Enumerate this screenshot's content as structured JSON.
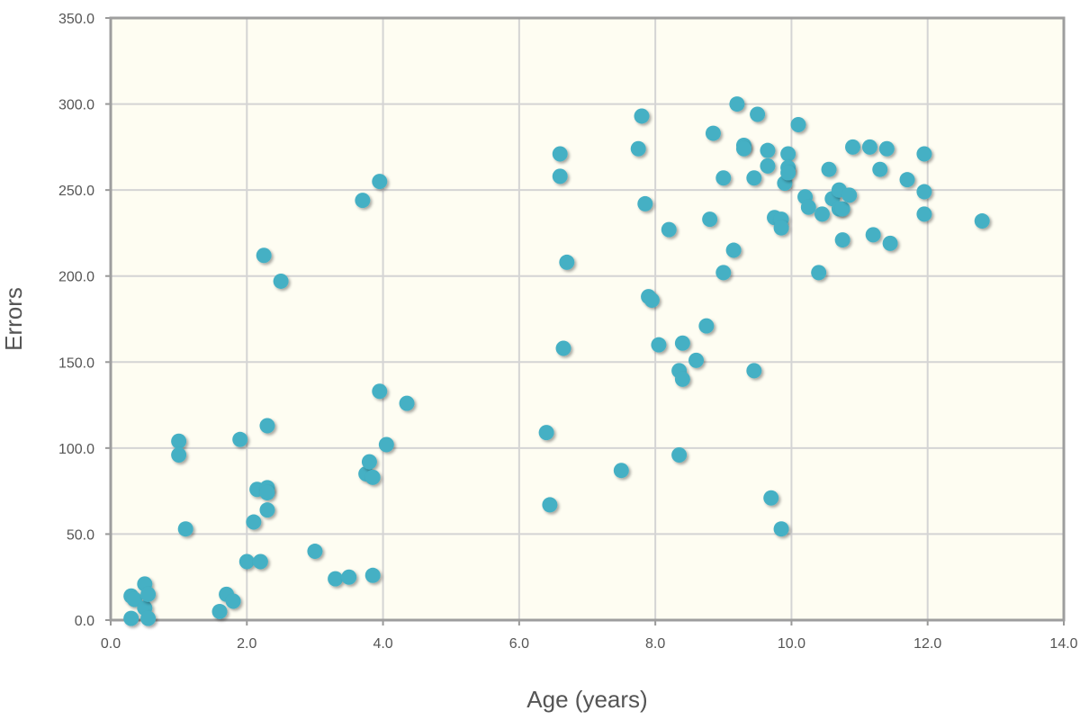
{
  "chart_data": {
    "type": "scatter",
    "title": "",
    "xlabel": "Age (years)",
    "ylabel": "Errors",
    "xlim": [
      0,
      14
    ],
    "ylim": [
      0,
      350
    ],
    "grid": true,
    "x_ticks": [
      "0.0",
      "2.0",
      "4.0",
      "6.0",
      "8.0",
      "10.0",
      "12.0",
      "14.0"
    ],
    "y_ticks": [
      "0.0",
      "50.0",
      "100.0",
      "150.0",
      "200.0",
      "250.0",
      "300.0",
      "350.0"
    ],
    "plot_background": "#fefdf2",
    "marker_color": "#45b0c4",
    "points": [
      {
        "x": 0.3,
        "y": 14
      },
      {
        "x": 0.35,
        "y": 12
      },
      {
        "x": 0.3,
        "y": 1
      },
      {
        "x": 0.5,
        "y": 21
      },
      {
        "x": 0.5,
        "y": 7
      },
      {
        "x": 0.55,
        "y": 15
      },
      {
        "x": 0.55,
        "y": 1
      },
      {
        "x": 1.0,
        "y": 104
      },
      {
        "x": 1.0,
        "y": 96
      },
      {
        "x": 1.1,
        "y": 53
      },
      {
        "x": 1.6,
        "y": 5
      },
      {
        "x": 1.7,
        "y": 15
      },
      {
        "x": 1.8,
        "y": 11
      },
      {
        "x": 1.9,
        "y": 105
      },
      {
        "x": 2.0,
        "y": 34
      },
      {
        "x": 2.1,
        "y": 57
      },
      {
        "x": 2.15,
        "y": 76
      },
      {
        "x": 2.2,
        "y": 34
      },
      {
        "x": 2.25,
        "y": 212
      },
      {
        "x": 2.3,
        "y": 113
      },
      {
        "x": 2.3,
        "y": 77
      },
      {
        "x": 2.3,
        "y": 74
      },
      {
        "x": 2.3,
        "y": 64
      },
      {
        "x": 2.5,
        "y": 197
      },
      {
        "x": 3.0,
        "y": 40
      },
      {
        "x": 3.3,
        "y": 24
      },
      {
        "x": 3.5,
        "y": 25
      },
      {
        "x": 3.7,
        "y": 244
      },
      {
        "x": 3.75,
        "y": 85
      },
      {
        "x": 3.8,
        "y": 92
      },
      {
        "x": 3.85,
        "y": 83
      },
      {
        "x": 3.85,
        "y": 26
      },
      {
        "x": 3.95,
        "y": 255
      },
      {
        "x": 3.95,
        "y": 133
      },
      {
        "x": 4.05,
        "y": 102
      },
      {
        "x": 4.35,
        "y": 126
      },
      {
        "x": 6.4,
        "y": 109
      },
      {
        "x": 6.45,
        "y": 67
      },
      {
        "x": 6.6,
        "y": 271
      },
      {
        "x": 6.6,
        "y": 258
      },
      {
        "x": 6.65,
        "y": 158
      },
      {
        "x": 6.7,
        "y": 208
      },
      {
        "x": 7.5,
        "y": 87
      },
      {
        "x": 7.75,
        "y": 274
      },
      {
        "x": 7.8,
        "y": 293
      },
      {
        "x": 7.85,
        "y": 242
      },
      {
        "x": 7.9,
        "y": 188
      },
      {
        "x": 7.95,
        "y": 186
      },
      {
        "x": 8.05,
        "y": 160
      },
      {
        "x": 8.2,
        "y": 227
      },
      {
        "x": 8.35,
        "y": 145
      },
      {
        "x": 8.35,
        "y": 96
      },
      {
        "x": 8.4,
        "y": 161
      },
      {
        "x": 8.4,
        "y": 140
      },
      {
        "x": 8.6,
        "y": 151
      },
      {
        "x": 8.75,
        "y": 171
      },
      {
        "x": 8.8,
        "y": 233
      },
      {
        "x": 8.85,
        "y": 283
      },
      {
        "x": 9.0,
        "y": 257
      },
      {
        "x": 9.0,
        "y": 202
      },
      {
        "x": 9.15,
        "y": 215
      },
      {
        "x": 9.2,
        "y": 300
      },
      {
        "x": 9.3,
        "y": 276
      },
      {
        "x": 9.3,
        "y": 274
      },
      {
        "x": 9.45,
        "y": 257
      },
      {
        "x": 9.45,
        "y": 145
      },
      {
        "x": 9.5,
        "y": 294
      },
      {
        "x": 9.65,
        "y": 273
      },
      {
        "x": 9.65,
        "y": 264
      },
      {
        "x": 9.7,
        "y": 71
      },
      {
        "x": 9.75,
        "y": 234
      },
      {
        "x": 9.85,
        "y": 233
      },
      {
        "x": 9.85,
        "y": 228
      },
      {
        "x": 9.85,
        "y": 53
      },
      {
        "x": 9.9,
        "y": 254
      },
      {
        "x": 9.95,
        "y": 271
      },
      {
        "x": 9.95,
        "y": 263
      },
      {
        "x": 9.95,
        "y": 260
      },
      {
        "x": 10.1,
        "y": 288
      },
      {
        "x": 10.2,
        "y": 246
      },
      {
        "x": 10.25,
        "y": 240
      },
      {
        "x": 10.4,
        "y": 202
      },
      {
        "x": 10.45,
        "y": 236
      },
      {
        "x": 10.55,
        "y": 262
      },
      {
        "x": 10.6,
        "y": 245
      },
      {
        "x": 10.7,
        "y": 250
      },
      {
        "x": 10.7,
        "y": 239
      },
      {
        "x": 10.75,
        "y": 221
      },
      {
        "x": 10.75,
        "y": 239
      },
      {
        "x": 10.85,
        "y": 247
      },
      {
        "x": 10.9,
        "y": 275
      },
      {
        "x": 11.15,
        "y": 275
      },
      {
        "x": 11.2,
        "y": 224
      },
      {
        "x": 11.3,
        "y": 262
      },
      {
        "x": 11.4,
        "y": 274
      },
      {
        "x": 11.45,
        "y": 219
      },
      {
        "x": 11.7,
        "y": 256
      },
      {
        "x": 11.95,
        "y": 271
      },
      {
        "x": 11.95,
        "y": 249
      },
      {
        "x": 11.95,
        "y": 236
      },
      {
        "x": 12.8,
        "y": 232
      }
    ]
  }
}
